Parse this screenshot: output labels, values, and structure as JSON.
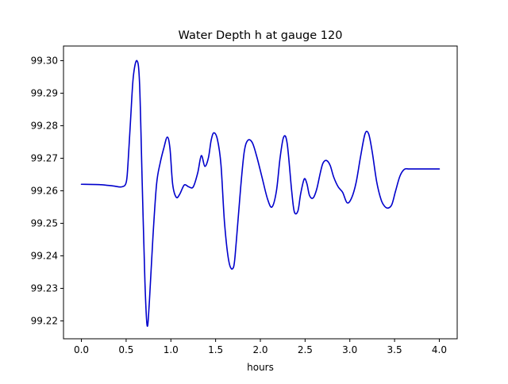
{
  "chart_data": {
    "type": "line",
    "title": "Water Depth h at gauge 120",
    "xlabel": "hours",
    "ylabel": "",
    "xlim": [
      -0.2,
      4.2
    ],
    "ylim": [
      99.2145,
      99.3045
    ],
    "x_ticks": [
      0.0,
      0.5,
      1.0,
      1.5,
      2.0,
      2.5,
      3.0,
      3.5,
      4.0
    ],
    "x_tick_labels": [
      "0.0",
      "0.5",
      "1.0",
      "1.5",
      "2.0",
      "2.5",
      "3.0",
      "3.5",
      "4.0"
    ],
    "y_ticks": [
      99.22,
      99.23,
      99.24,
      99.25,
      99.26,
      99.27,
      99.28,
      99.29,
      99.3
    ],
    "y_tick_labels": [
      "99.22",
      "99.23",
      "99.24",
      "99.25",
      "99.26",
      "99.27",
      "99.28",
      "99.29",
      "99.30"
    ],
    "grid": false,
    "legend": "none",
    "series": [
      {
        "color": "#0000cc",
        "x": [
          0.0,
          0.2,
          0.35,
          0.45,
          0.5,
          0.52,
          0.55,
          0.58,
          0.62,
          0.65,
          0.68,
          0.71,
          0.735,
          0.76,
          0.8,
          0.84,
          0.88,
          0.92,
          0.96,
          0.99,
          1.02,
          1.06,
          1.1,
          1.15,
          1.2,
          1.25,
          1.3,
          1.34,
          1.38,
          1.42,
          1.45,
          1.48,
          1.52,
          1.56,
          1.6,
          1.65,
          1.7,
          1.73,
          1.78,
          1.82,
          1.86,
          1.91,
          1.96,
          2.02,
          2.08,
          2.13,
          2.18,
          2.22,
          2.26,
          2.3,
          2.35,
          2.38,
          2.42,
          2.45,
          2.49,
          2.52,
          2.55,
          2.59,
          2.63,
          2.67,
          2.7,
          2.74,
          2.78,
          2.82,
          2.87,
          2.92,
          2.97,
          3.02,
          3.07,
          3.12,
          3.17,
          3.21,
          3.25,
          3.3,
          3.35,
          3.39,
          3.43,
          3.47,
          3.51,
          3.56,
          3.61,
          3.66,
          3.71,
          3.75,
          3.8,
          3.85,
          3.9,
          3.95,
          4.0
        ],
        "y": [
          99.262,
          99.2619,
          99.2615,
          99.2612,
          99.2625,
          99.268,
          99.282,
          99.295,
          99.3,
          99.293,
          99.262,
          99.232,
          99.2185,
          99.226,
          99.246,
          99.262,
          99.2685,
          99.273,
          99.2765,
          99.273,
          99.262,
          99.258,
          99.259,
          99.2618,
          99.2612,
          99.2612,
          99.2655,
          99.2708,
          99.2675,
          99.2702,
          99.2755,
          99.2778,
          99.2758,
          99.268,
          99.25,
          99.238,
          99.2365,
          99.244,
          99.261,
          99.272,
          99.2755,
          99.2748,
          99.2705,
          99.264,
          99.2575,
          99.255,
          99.26,
          99.27,
          99.2765,
          99.2745,
          99.26,
          99.2535,
          99.2538,
          99.259,
          99.2636,
          99.2622,
          99.2585,
          99.2578,
          99.2605,
          99.2655,
          99.2685,
          99.2693,
          99.2678,
          99.2642,
          99.2612,
          99.2595,
          99.2563,
          99.2578,
          99.2625,
          99.2705,
          99.2775,
          99.2775,
          99.272,
          99.2628,
          99.2572,
          99.2552,
          99.2547,
          99.2558,
          99.2598,
          99.2645,
          99.2666,
          99.2667,
          99.2667,
          99.2667,
          99.2667,
          99.2667,
          99.2667,
          99.2667,
          99.2667
        ]
      }
    ]
  }
}
